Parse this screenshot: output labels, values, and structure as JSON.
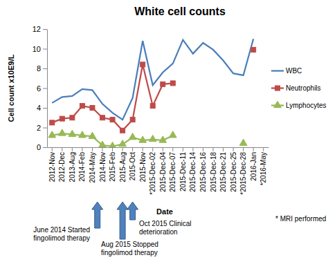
{
  "chart_data": {
    "type": "line",
    "title": "White cell counts",
    "x_label": "Date",
    "y_label": "Cell count x10E9/L",
    "categories": [
      "2012-Nov",
      "2012-Dec",
      "2013-Aug",
      "2014-Feb",
      "2014-May",
      "2014-Nov",
      "2015-Feb",
      "2015-Aug",
      "2015-Oct",
      "2015-Nov",
      "*2015-Dec-02",
      "2015-Dec-04",
      "2015-Dec-07",
      "2015-Dec-11",
      "2015-Dec-14",
      "2015-Dec-16",
      "2015-Dec-18",
      "2015-Dec-21",
      "2015-Dec-25",
      "*2015-Dec-28",
      "2016-Jan",
      "*2016-May"
    ],
    "series": [
      {
        "name": "WBC",
        "color": "#4a7ebb",
        "marker": "none",
        "values": [
          4.5,
          5.1,
          5.2,
          5.9,
          5.8,
          4.4,
          3.5,
          2.8,
          5.0,
          10.8,
          6.3,
          7.6,
          8.5,
          10.9,
          9.5,
          10.6,
          9.9,
          8.8,
          7.5,
          7.3,
          11.0,
          null
        ]
      },
      {
        "name": "Neutrophils",
        "color": "#be4b48",
        "marker": "square",
        "values": [
          2.5,
          2.9,
          3.0,
          4.2,
          4.0,
          3.0,
          2.8,
          1.7,
          2.8,
          8.4,
          4.2,
          6.4,
          6.5,
          null,
          null,
          null,
          null,
          null,
          null,
          null,
          9.9,
          null
        ]
      },
      {
        "name": "Lymphocytes",
        "color": "#98b954",
        "marker": "triangle",
        "values": [
          1.2,
          1.4,
          1.3,
          1.2,
          1.1,
          0.2,
          0.1,
          0.3,
          1.0,
          0.7,
          0.8,
          0.7,
          1.2,
          null,
          null,
          null,
          null,
          null,
          null,
          0.4,
          null,
          null
        ]
      }
    ],
    "ylim": [
      0,
      12
    ],
    "yticks": [
      0,
      2,
      4,
      6,
      8,
      10,
      12
    ],
    "grid": false,
    "legend": "right",
    "annotations": [
      "June 2014 Started fingolimod therapy",
      "Aug 2015 Stopped fingolimod therapy",
      "Oct 2015 Clinical deterioration"
    ],
    "footnote": "* MRI performed"
  }
}
